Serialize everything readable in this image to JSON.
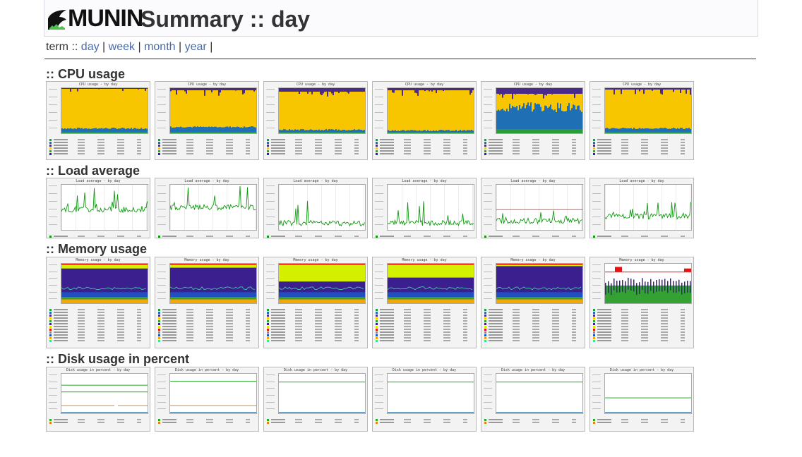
{
  "header": {
    "logo_text": "MUNIN",
    "title": "Summary :: day"
  },
  "nav": {
    "label": "term",
    "sep": "::",
    "links": [
      "day",
      "week",
      "month",
      "year"
    ]
  },
  "sections": [
    {
      "title": ":: CPU usage",
      "graph_title": "CPU usage - by day",
      "count": 6
    },
    {
      "title": ":: Load average",
      "graph_title": "Load average - by day",
      "count": 6
    },
    {
      "title": ":: Memory usage",
      "graph_title": "Memory usage - by day",
      "count": 6
    },
    {
      "title": ":: Disk usage in percent",
      "graph_title": "Disk usage in percent - by day",
      "count": 6
    }
  ],
  "colors": {
    "cpu_idle": "#f7c600",
    "cpu_user": "#1f6fb5",
    "cpu_system": "#2a9a3a",
    "cpu_iowait": "#4a2a8a",
    "load": "#119911",
    "mem_apps": "#34a233",
    "mem_cache": "#3b1f8e",
    "mem_unused": "#d4f000",
    "mem_swap": "#e81010",
    "disk_green": "#27a82a",
    "disk_orange": "#e8801a",
    "disk_blue": "#2060a0"
  }
}
